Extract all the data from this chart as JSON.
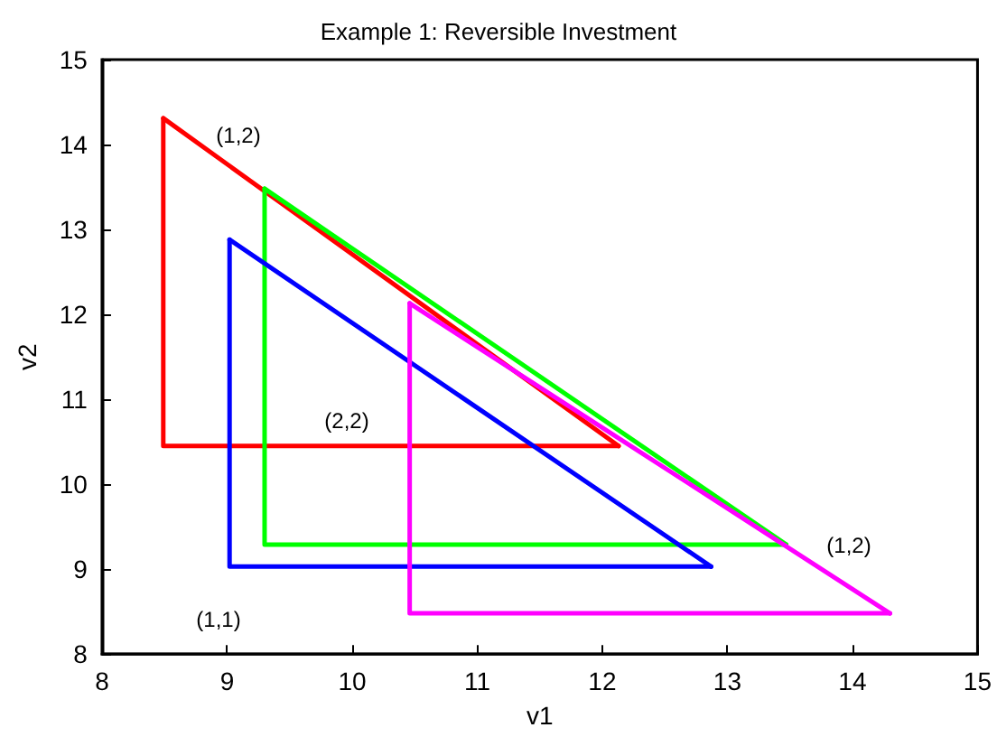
{
  "chart_data": {
    "type": "line",
    "title": "Example 1: Reversible Investment",
    "xlabel": "v1",
    "ylabel": "v2",
    "xlim": [
      8,
      15
    ],
    "xticks": [
      8,
      9,
      10,
      11,
      12,
      13,
      14,
      15
    ],
    "ylim": [
      8,
      15
    ],
    "yticks": [
      8,
      9,
      10,
      11,
      12,
      13,
      14,
      15
    ],
    "grid": false,
    "marker": "none",
    "line_style": "solid",
    "series": [
      {
        "color": "#ff0000",
        "x": [
          8.49,
          8.49,
          12.13
        ],
        "values": [
          14.31,
          10.45,
          10.45
        ]
      },
      {
        "color": "#ff0000",
        "x": [
          8.49,
          12.13
        ],
        "values": [
          14.31,
          10.45
        ]
      },
      {
        "color": "#00ff00",
        "x": [
          9.3,
          9.3,
          13.47
        ],
        "values": [
          13.48,
          9.29,
          9.29
        ]
      },
      {
        "color": "#00ff00",
        "x": [
          9.3,
          13.47
        ],
        "values": [
          13.48,
          9.29
        ]
      },
      {
        "color": "#0000ff",
        "x": [
          9.02,
          9.02,
          12.87
        ],
        "values": [
          12.88,
          9.03,
          9.03
        ]
      },
      {
        "color": "#0000ff",
        "x": [
          9.02,
          12.87
        ],
        "values": [
          12.88,
          9.03
        ]
      },
      {
        "color": "#ff00ff",
        "x": [
          10.46,
          10.46,
          14.3
        ],
        "values": [
          12.13,
          8.48,
          8.48
        ]
      },
      {
        "color": "#ff00ff",
        "x": [
          10.46,
          14.3
        ],
        "values": [
          12.13,
          8.48
        ]
      }
    ],
    "annotations": [
      "(1,2)",
      "(2,2)",
      "(1,2)",
      "(1,1)"
    ]
  }
}
